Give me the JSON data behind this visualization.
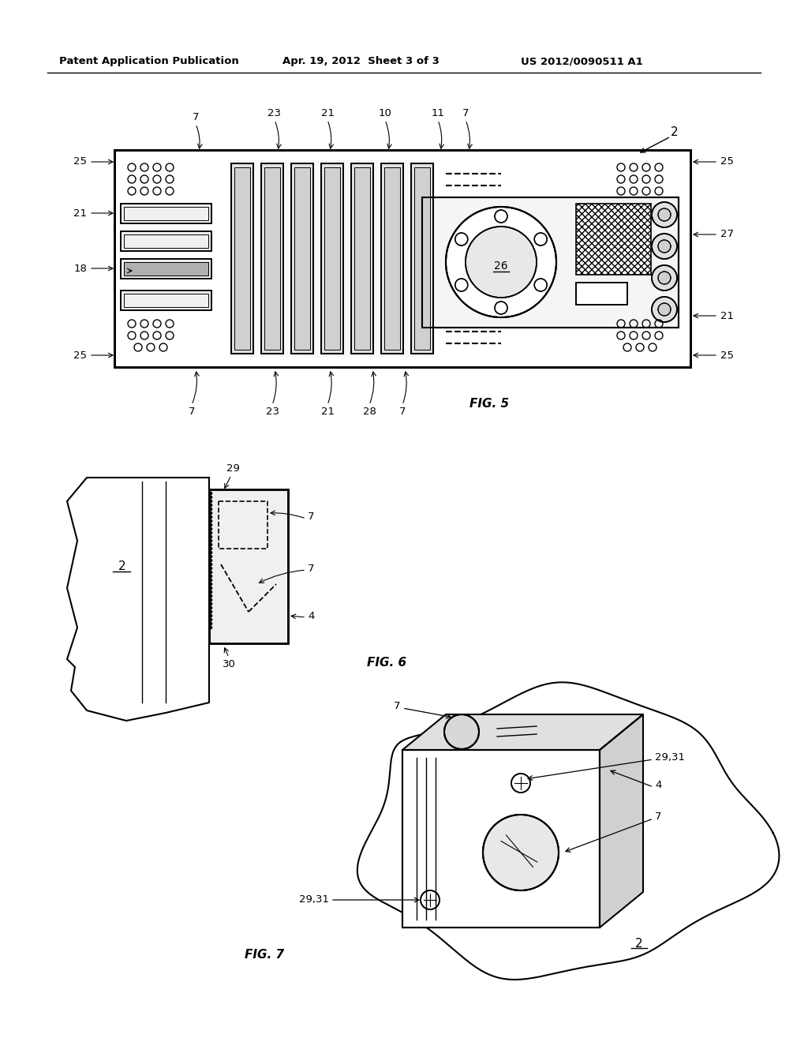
{
  "header_left": "Patent Application Publication",
  "header_center": "Apr. 19, 2012  Sheet 3 of 3",
  "header_right": "US 2012/0090511 A1",
  "fig5_label": "FIG. 5",
  "fig6_label": "FIG. 6",
  "fig7_label": "FIG. 7",
  "bg_color": "#ffffff"
}
